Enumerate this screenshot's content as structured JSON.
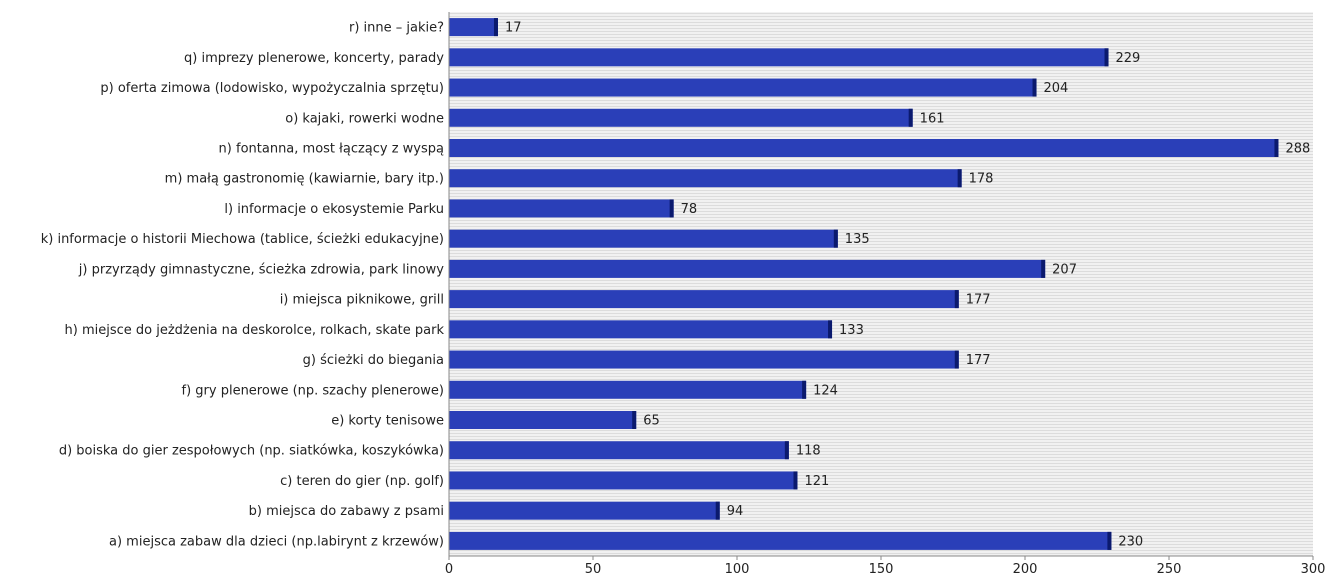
{
  "chart_data": {
    "type": "bar",
    "orientation": "horizontal",
    "categories": [
      "r) inne – jakie?",
      "q) imprezy plenerowe, koncerty, parady",
      "p) oferta zimowa (lodowisko, wypożyczalnia sprzętu)",
      "o) kajaki, rowerki wodne",
      "n) fontanna, most łączący z wyspą",
      "m) małą gastronomię (kawiarnie, bary itp.)",
      "l) informacje o ekosystemie Parku",
      "k) informacje o historii Miechowa (tablice, ścieżki edukacyjne)",
      "j) przyrządy gimnastyczne, ścieżka zdrowia, park linowy",
      "i) miejsca piknikowe, grill",
      "h) miejsce do jeżdżenia na deskorolce, rolkach, skate park",
      "g) ścieżki do biegania",
      "f) gry plenerowe (np. szachy plenerowe)",
      "e) korty tenisowe",
      "d) boiska do gier zespołowych (np. siatkówka, koszykówka)",
      "c) teren do gier (np. golf)",
      "b) miejsca do zabawy z psami",
      "a) miejsca zabaw dla dzieci (np.labirynt z krzewów)"
    ],
    "values": [
      17,
      229,
      204,
      161,
      288,
      178,
      78,
      135,
      207,
      177,
      133,
      177,
      124,
      65,
      118,
      121,
      94,
      230
    ],
    "value_labels": [
      "17",
      "229",
      "204",
      "161",
      "288",
      "178",
      "78",
      "135",
      "207",
      "177",
      "133",
      "177",
      "124",
      "65",
      "118",
      "121",
      "94",
      "230"
    ],
    "xlim": [
      0,
      300
    ],
    "xticks": [
      0,
      50,
      100,
      150,
      200,
      250,
      300
    ],
    "xtick_labels": [
      "0",
      "50",
      "100",
      "150",
      "200",
      "250",
      "300"
    ],
    "title": "",
    "xlabel": "",
    "ylabel": "",
    "grid": true,
    "legend": "none",
    "colors": {
      "bar": "#2a3fb8",
      "bar_edge": "#0b1a6e",
      "plot_background": "#f1f1f1",
      "grid_stripe": "#dcdcdc",
      "axis": "#888888",
      "text": "#222222"
    }
  }
}
